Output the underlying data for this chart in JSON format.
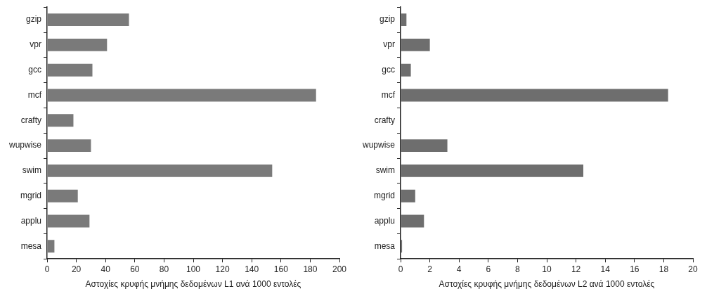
{
  "chart_data": [
    {
      "type": "bar",
      "orientation": "horizontal",
      "xlabel": "Αστοχίες κρυφής μνήμης δεδομένων L1 ανά 1000 εντολές",
      "categories": [
        "gzip",
        "vpr",
        "gcc",
        "mcf",
        "crafty",
        "wupwise",
        "swim",
        "mgrid",
        "applu",
        "mesa"
      ],
      "values": [
        56,
        41,
        31,
        184,
        18,
        30,
        154,
        21,
        29,
        5
      ],
      "color": "#7a7a7a",
      "xlim": [
        0,
        200
      ],
      "xticks": [
        0,
        20,
        40,
        60,
        80,
        100,
        120,
        140,
        160,
        180,
        200
      ],
      "grid": false
    },
    {
      "type": "bar",
      "orientation": "horizontal",
      "xlabel": "Αστοχίες κρυφής μνήμης δεδομένων L2 ανά 1000 εντολές",
      "categories": [
        "gzip",
        "vpr",
        "gcc",
        "mcf",
        "crafty",
        "wupwise",
        "swim",
        "mgrid",
        "applu",
        "mesa"
      ],
      "values": [
        0.4,
        2.0,
        0.7,
        18.3,
        0,
        3.2,
        12.5,
        1.0,
        1.6,
        0.1
      ],
      "color": "#6e6e6e",
      "xlim": [
        0,
        20
      ],
      "xticks": [
        0,
        2,
        4,
        6,
        8,
        10,
        12,
        14,
        16,
        18,
        20
      ],
      "grid": false
    }
  ]
}
